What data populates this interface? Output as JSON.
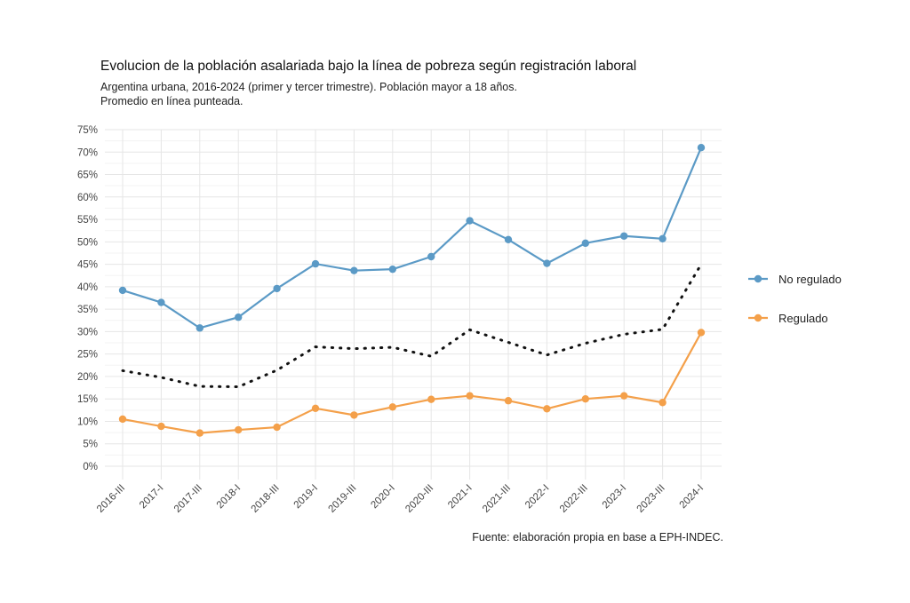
{
  "chart_data": {
    "type": "line",
    "title": "Evolucion de la población asalariada bajo la línea de pobreza según registración laboral",
    "subtitle": [
      "Argentina urbana, 2016-2024 (primer y tercer trimestre). Población mayor a 18 años.",
      "Promedio en línea punteada."
    ],
    "caption": "Fuente: elaboración propia en base a EPH-INDEC.",
    "xlabel": "",
    "ylabel": "",
    "categories": [
      "2016-III",
      "2017-I",
      "2017-III",
      "2018-I",
      "2018-III",
      "2019-I",
      "2019-III",
      "2020-I",
      "2020-III",
      "2021-I",
      "2021-III",
      "2022-I",
      "2022-III",
      "2023-I",
      "2023-III",
      "2024-I"
    ],
    "ylim": [
      0,
      75
    ],
    "yticks": [
      0,
      5,
      10,
      15,
      20,
      25,
      30,
      35,
      40,
      45,
      50,
      55,
      60,
      65,
      70,
      75
    ],
    "ytick_labels": [
      "0%",
      "5%",
      "10%",
      "15%",
      "20%",
      "25%",
      "30%",
      "35%",
      "40%",
      "45%",
      "50%",
      "55%",
      "60%",
      "65%",
      "70%",
      "75%"
    ],
    "grid": true,
    "legend_position": "right",
    "series": [
      {
        "name": "No regulado",
        "color": "#5b9ac6",
        "values": [
          39.2,
          36.5,
          30.8,
          33.2,
          39.6,
          45.1,
          43.6,
          43.9,
          46.7,
          54.7,
          50.5,
          45.2,
          49.7,
          51.3,
          50.7,
          71.0
        ]
      },
      {
        "name": "Regulado",
        "color": "#f4a04a",
        "values": [
          10.5,
          8.9,
          7.4,
          8.1,
          8.7,
          12.9,
          11.4,
          13.2,
          14.9,
          15.7,
          14.6,
          12.8,
          15.0,
          15.7,
          14.2,
          29.8
        ]
      }
    ],
    "average": {
      "color": "#111111",
      "values": [
        21.3,
        19.8,
        17.8,
        17.7,
        21.4,
        26.6,
        26.2,
        26.5,
        24.5,
        30.4,
        27.6,
        24.8,
        27.4,
        29.4,
        30.5,
        45.0
      ]
    }
  }
}
